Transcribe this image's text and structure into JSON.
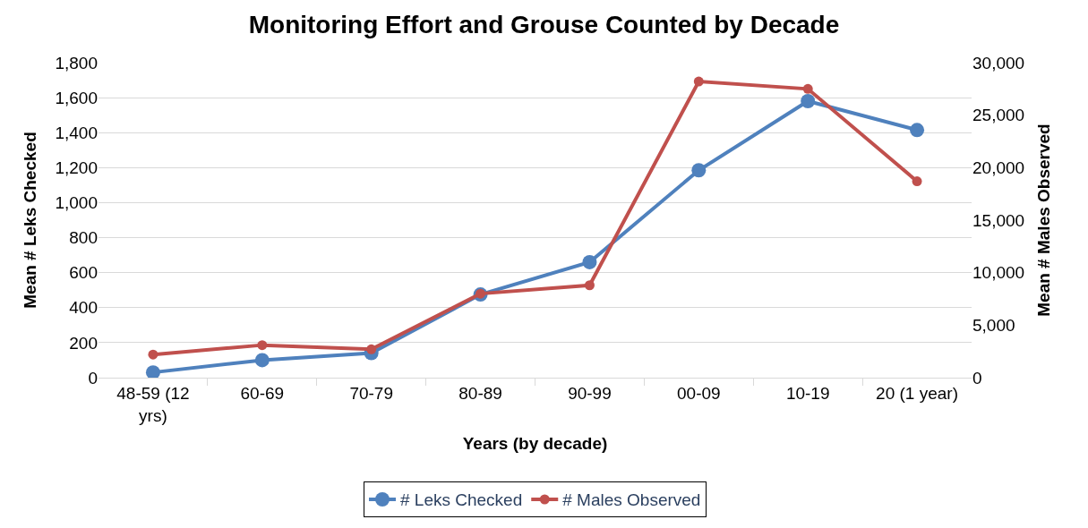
{
  "chart_data": {
    "type": "line",
    "title": "Monitoring Effort and Grouse Counted by Decade",
    "xlabel": "Years (by decade)",
    "ylabel": "Mean # Leks Checked",
    "y2label": "Mean # Males Observed",
    "categories": [
      "48-59 (12 yrs)",
      "60-69",
      "70-79",
      "80-89",
      "90-99",
      "00-09",
      "10-19",
      "20 (1 year)"
    ],
    "series": [
      {
        "name": "# Leks Checked",
        "color": "#4f81bd",
        "values": [
          30,
          100,
          140,
          475,
          660,
          1185,
          1580,
          1415
        ]
      },
      {
        "name": "# Males Observed",
        "color": "#c0504d",
        "axis": "y2",
        "values": [
          2200,
          3100,
          2700,
          8000,
          8800,
          28200,
          27500,
          18700
        ]
      }
    ],
    "ylim": [
      0,
      1800
    ],
    "yticks": [
      0,
      {
        "value": 200,
        "label": "200"
      },
      {
        "value": 400,
        "label": "400"
      },
      {
        "value": 600,
        "label": "600"
      },
      {
        "value": 800,
        "label": "800"
      },
      {
        "value": 1000,
        "label": "1,000"
      },
      {
        "value": 1200,
        "label": "1,200"
      },
      {
        "value": 1400,
        "label": "1,400"
      },
      {
        "value": 1600,
        "label": "1,600"
      },
      {
        "value": 1800,
        "label": "1,800"
      }
    ],
    "y2lim": [
      0,
      30000
    ],
    "y2ticks": [
      0,
      {
        "value": 5000,
        "label": "5,000"
      },
      {
        "value": 10000,
        "label": "10,000"
      },
      {
        "value": 15000,
        "label": "15,000"
      },
      {
        "value": 20000,
        "label": "20,000"
      },
      {
        "value": 25000,
        "label": "25,000"
      },
      {
        "value": 30000,
        "label": "30,000"
      }
    ],
    "grid": "y",
    "legend": "bottom",
    "marker": "circle",
    "line_style": "solid"
  }
}
